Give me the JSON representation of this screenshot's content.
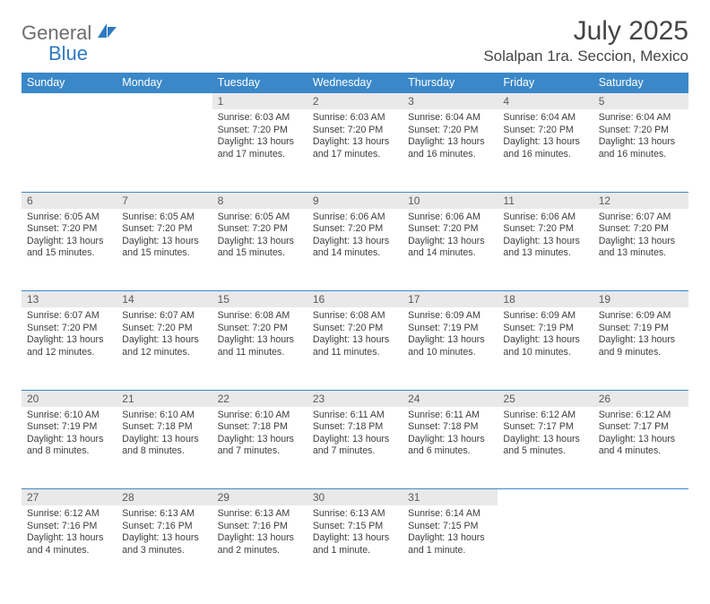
{
  "brand": {
    "word1": "General",
    "word2": "Blue"
  },
  "title": "July 2025",
  "location": "Solalpan 1ra. Seccion, Mexico",
  "colors": {
    "header_bg": "#3b88c8",
    "header_text": "#ffffff",
    "daynum_bg": "#e9e9e9",
    "rule": "#3b88c8",
    "text": "#3d3d3d",
    "title": "#454545",
    "logo_gray": "#6d6d6d",
    "logo_blue": "#2f7ac0"
  },
  "typography": {
    "title_fontsize": 30,
    "location_fontsize": 17,
    "dayheader_fontsize": 12.5,
    "daynum_fontsize": 12,
    "body_fontsize": 10.6
  },
  "day_names": [
    "Sunday",
    "Monday",
    "Tuesday",
    "Wednesday",
    "Thursday",
    "Friday",
    "Saturday"
  ],
  "weeks": [
    [
      {
        "n": "",
        "sunrise": "",
        "sunset": "",
        "daylight": ""
      },
      {
        "n": "",
        "sunrise": "",
        "sunset": "",
        "daylight": ""
      },
      {
        "n": "1",
        "sunrise": "Sunrise: 6:03 AM",
        "sunset": "Sunset: 7:20 PM",
        "daylight": "Daylight: 13 hours and 17 minutes."
      },
      {
        "n": "2",
        "sunrise": "Sunrise: 6:03 AM",
        "sunset": "Sunset: 7:20 PM",
        "daylight": "Daylight: 13 hours and 17 minutes."
      },
      {
        "n": "3",
        "sunrise": "Sunrise: 6:04 AM",
        "sunset": "Sunset: 7:20 PM",
        "daylight": "Daylight: 13 hours and 16 minutes."
      },
      {
        "n": "4",
        "sunrise": "Sunrise: 6:04 AM",
        "sunset": "Sunset: 7:20 PM",
        "daylight": "Daylight: 13 hours and 16 minutes."
      },
      {
        "n": "5",
        "sunrise": "Sunrise: 6:04 AM",
        "sunset": "Sunset: 7:20 PM",
        "daylight": "Daylight: 13 hours and 16 minutes."
      }
    ],
    [
      {
        "n": "6",
        "sunrise": "Sunrise: 6:05 AM",
        "sunset": "Sunset: 7:20 PM",
        "daylight": "Daylight: 13 hours and 15 minutes."
      },
      {
        "n": "7",
        "sunrise": "Sunrise: 6:05 AM",
        "sunset": "Sunset: 7:20 PM",
        "daylight": "Daylight: 13 hours and 15 minutes."
      },
      {
        "n": "8",
        "sunrise": "Sunrise: 6:05 AM",
        "sunset": "Sunset: 7:20 PM",
        "daylight": "Daylight: 13 hours and 15 minutes."
      },
      {
        "n": "9",
        "sunrise": "Sunrise: 6:06 AM",
        "sunset": "Sunset: 7:20 PM",
        "daylight": "Daylight: 13 hours and 14 minutes."
      },
      {
        "n": "10",
        "sunrise": "Sunrise: 6:06 AM",
        "sunset": "Sunset: 7:20 PM",
        "daylight": "Daylight: 13 hours and 14 minutes."
      },
      {
        "n": "11",
        "sunrise": "Sunrise: 6:06 AM",
        "sunset": "Sunset: 7:20 PM",
        "daylight": "Daylight: 13 hours and 13 minutes."
      },
      {
        "n": "12",
        "sunrise": "Sunrise: 6:07 AM",
        "sunset": "Sunset: 7:20 PM",
        "daylight": "Daylight: 13 hours and 13 minutes."
      }
    ],
    [
      {
        "n": "13",
        "sunrise": "Sunrise: 6:07 AM",
        "sunset": "Sunset: 7:20 PM",
        "daylight": "Daylight: 13 hours and 12 minutes."
      },
      {
        "n": "14",
        "sunrise": "Sunrise: 6:07 AM",
        "sunset": "Sunset: 7:20 PM",
        "daylight": "Daylight: 13 hours and 12 minutes."
      },
      {
        "n": "15",
        "sunrise": "Sunrise: 6:08 AM",
        "sunset": "Sunset: 7:20 PM",
        "daylight": "Daylight: 13 hours and 11 minutes."
      },
      {
        "n": "16",
        "sunrise": "Sunrise: 6:08 AM",
        "sunset": "Sunset: 7:20 PM",
        "daylight": "Daylight: 13 hours and 11 minutes."
      },
      {
        "n": "17",
        "sunrise": "Sunrise: 6:09 AM",
        "sunset": "Sunset: 7:19 PM",
        "daylight": "Daylight: 13 hours and 10 minutes."
      },
      {
        "n": "18",
        "sunrise": "Sunrise: 6:09 AM",
        "sunset": "Sunset: 7:19 PM",
        "daylight": "Daylight: 13 hours and 10 minutes."
      },
      {
        "n": "19",
        "sunrise": "Sunrise: 6:09 AM",
        "sunset": "Sunset: 7:19 PM",
        "daylight": "Daylight: 13 hours and 9 minutes."
      }
    ],
    [
      {
        "n": "20",
        "sunrise": "Sunrise: 6:10 AM",
        "sunset": "Sunset: 7:19 PM",
        "daylight": "Daylight: 13 hours and 8 minutes."
      },
      {
        "n": "21",
        "sunrise": "Sunrise: 6:10 AM",
        "sunset": "Sunset: 7:18 PM",
        "daylight": "Daylight: 13 hours and 8 minutes."
      },
      {
        "n": "22",
        "sunrise": "Sunrise: 6:10 AM",
        "sunset": "Sunset: 7:18 PM",
        "daylight": "Daylight: 13 hours and 7 minutes."
      },
      {
        "n": "23",
        "sunrise": "Sunrise: 6:11 AM",
        "sunset": "Sunset: 7:18 PM",
        "daylight": "Daylight: 13 hours and 7 minutes."
      },
      {
        "n": "24",
        "sunrise": "Sunrise: 6:11 AM",
        "sunset": "Sunset: 7:18 PM",
        "daylight": "Daylight: 13 hours and 6 minutes."
      },
      {
        "n": "25",
        "sunrise": "Sunrise: 6:12 AM",
        "sunset": "Sunset: 7:17 PM",
        "daylight": "Daylight: 13 hours and 5 minutes."
      },
      {
        "n": "26",
        "sunrise": "Sunrise: 6:12 AM",
        "sunset": "Sunset: 7:17 PM",
        "daylight": "Daylight: 13 hours and 4 minutes."
      }
    ],
    [
      {
        "n": "27",
        "sunrise": "Sunrise: 6:12 AM",
        "sunset": "Sunset: 7:16 PM",
        "daylight": "Daylight: 13 hours and 4 minutes."
      },
      {
        "n": "28",
        "sunrise": "Sunrise: 6:13 AM",
        "sunset": "Sunset: 7:16 PM",
        "daylight": "Daylight: 13 hours and 3 minutes."
      },
      {
        "n": "29",
        "sunrise": "Sunrise: 6:13 AM",
        "sunset": "Sunset: 7:16 PM",
        "daylight": "Daylight: 13 hours and 2 minutes."
      },
      {
        "n": "30",
        "sunrise": "Sunrise: 6:13 AM",
        "sunset": "Sunset: 7:15 PM",
        "daylight": "Daylight: 13 hours and 1 minute."
      },
      {
        "n": "31",
        "sunrise": "Sunrise: 6:14 AM",
        "sunset": "Sunset: 7:15 PM",
        "daylight": "Daylight: 13 hours and 1 minute."
      },
      {
        "n": "",
        "sunrise": "",
        "sunset": "",
        "daylight": ""
      },
      {
        "n": "",
        "sunrise": "",
        "sunset": "",
        "daylight": ""
      }
    ]
  ]
}
